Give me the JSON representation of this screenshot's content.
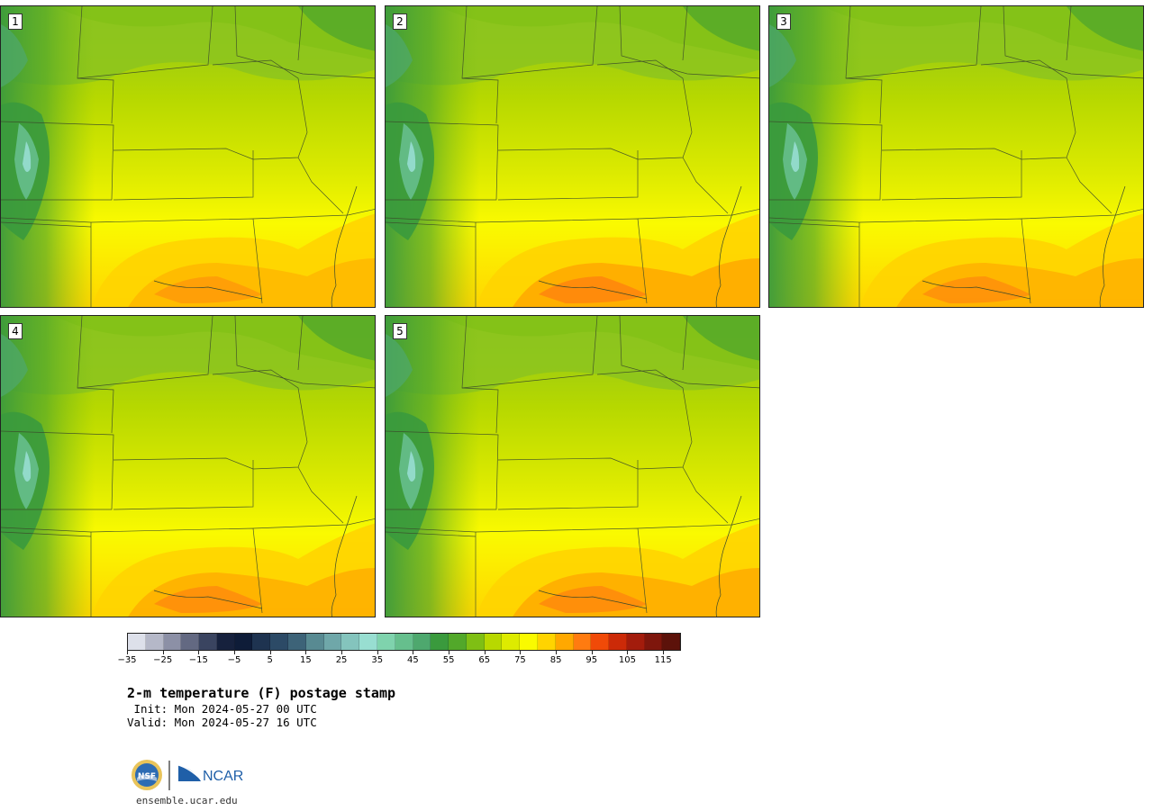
{
  "panels": [
    {
      "label": "1",
      "hot": 0.55
    },
    {
      "label": "2",
      "hot": 0.85
    },
    {
      "label": "3",
      "hot": 0.7
    },
    {
      "label": "4",
      "hot": 0.75
    },
    {
      "label": "5",
      "hot": 0.8
    }
  ],
  "colorbar": {
    "colors": [
      "#dde0ea",
      "#b5b8c8",
      "#8c90a6",
      "#636982",
      "#3a4460",
      "#16213d",
      "#0e1c38",
      "#1e3350",
      "#2c4a66",
      "#3d6378",
      "#588a92",
      "#6fa7a9",
      "#84c4bd",
      "#98ded1",
      "#7fd3ad",
      "#66bf8d",
      "#4ea86e",
      "#3a9a3d",
      "#52a82a",
      "#7fbf14",
      "#b8d800",
      "#ddeb00",
      "#fafa00",
      "#ffd400",
      "#ffa800",
      "#ff7b10",
      "#f04a08",
      "#cc2a08",
      "#a31c0c",
      "#7e160c",
      "#5c120a"
    ],
    "ticks": [
      "−35",
      "−25",
      "−15",
      "−5",
      "5",
      "15",
      "25",
      "35",
      "45",
      "55",
      "65",
      "75",
      "85",
      "95",
      "105",
      "115"
    ],
    "min": -35,
    "max": 120
  },
  "title": "2-m temperature (F) postage stamp",
  "init": " Init: Mon 2024-05-27 00 UTC",
  "valid": "Valid: Mon 2024-05-27 16 UTC",
  "logos": {
    "nsf": "NSF",
    "ncar": "NCAR"
  },
  "url": "ensemble.ucar.edu"
}
